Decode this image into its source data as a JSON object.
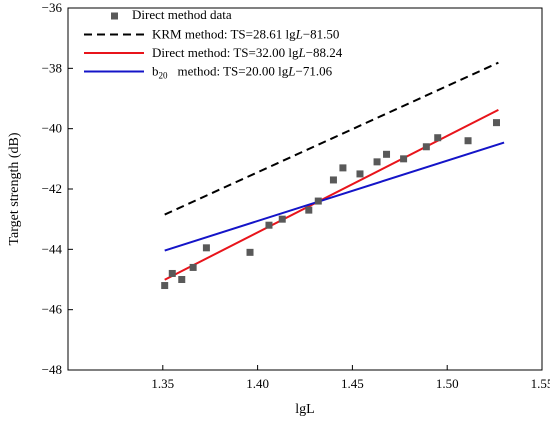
{
  "chart_data": {
    "type": "scatter",
    "xlabel": "lgL",
    "ylabel": "Target strength (dB)",
    "xlim": [
      1.3,
      1.55
    ],
    "ylim": [
      -48,
      -36
    ],
    "xticks": [
      "1.35",
      "1.40",
      "1.45",
      "1.50",
      "1.55"
    ],
    "xtick_values": [
      1.35,
      1.4,
      1.45,
      1.5,
      1.55
    ],
    "yticks": [
      "−36",
      "−38",
      "−40",
      "−42",
      "−44",
      "−46",
      "−48"
    ],
    "ytick_values": [
      -36,
      -38,
      -40,
      -42,
      -44,
      -46,
      -48
    ],
    "grid": false,
    "legend_position": "top-left",
    "scatter": {
      "name": "Direct method data",
      "color": "#595959",
      "x": [
        1.351,
        1.355,
        1.36,
        1.366,
        1.373,
        1.396,
        1.406,
        1.413,
        1.427,
        1.432,
        1.44,
        1.445,
        1.454,
        1.463,
        1.468,
        1.477,
        1.489,
        1.495,
        1.511,
        1.526
      ],
      "y": [
        -45.2,
        -44.8,
        -45.0,
        -44.6,
        -43.95,
        -44.1,
        -43.2,
        -43.0,
        -42.7,
        -42.4,
        -41.7,
        -41.3,
        -41.5,
        -41.1,
        -40.85,
        -41.0,
        -40.6,
        -40.3,
        -40.4,
        -39.8
      ]
    },
    "lines": [
      {
        "name": "KRM method: TS=28.61 lgL−81.50",
        "legend_prefix": "KRM method: TS=28.61 lg",
        "legend_var": "L",
        "legend_suffix": "−81.50",
        "slope": 28.61,
        "intercept": -81.5,
        "x_range": [
          1.351,
          1.527
        ],
        "color": "#000000",
        "dash": "8,5"
      },
      {
        "name": "Direct method: TS=32.00 lgL−88.24",
        "legend_prefix": "Direct method: TS=32.00 lg",
        "legend_var": "L",
        "legend_suffix": "−88.24",
        "slope": 32.0,
        "intercept": -88.24,
        "x_range": [
          1.351,
          1.527
        ],
        "color": "#e8141b",
        "dash": ""
      },
      {
        "name": "b20 method: TS=20.00 lgL−71.06",
        "legend_prefix": "b",
        "legend_sub": "20",
        "legend_mid": "method: TS=20.00 lg",
        "legend_var": "L",
        "legend_suffix": "−71.06",
        "slope": 20.0,
        "intercept": -71.06,
        "x_range": [
          1.351,
          1.53
        ],
        "color": "#1414c8",
        "dash": ""
      }
    ]
  }
}
